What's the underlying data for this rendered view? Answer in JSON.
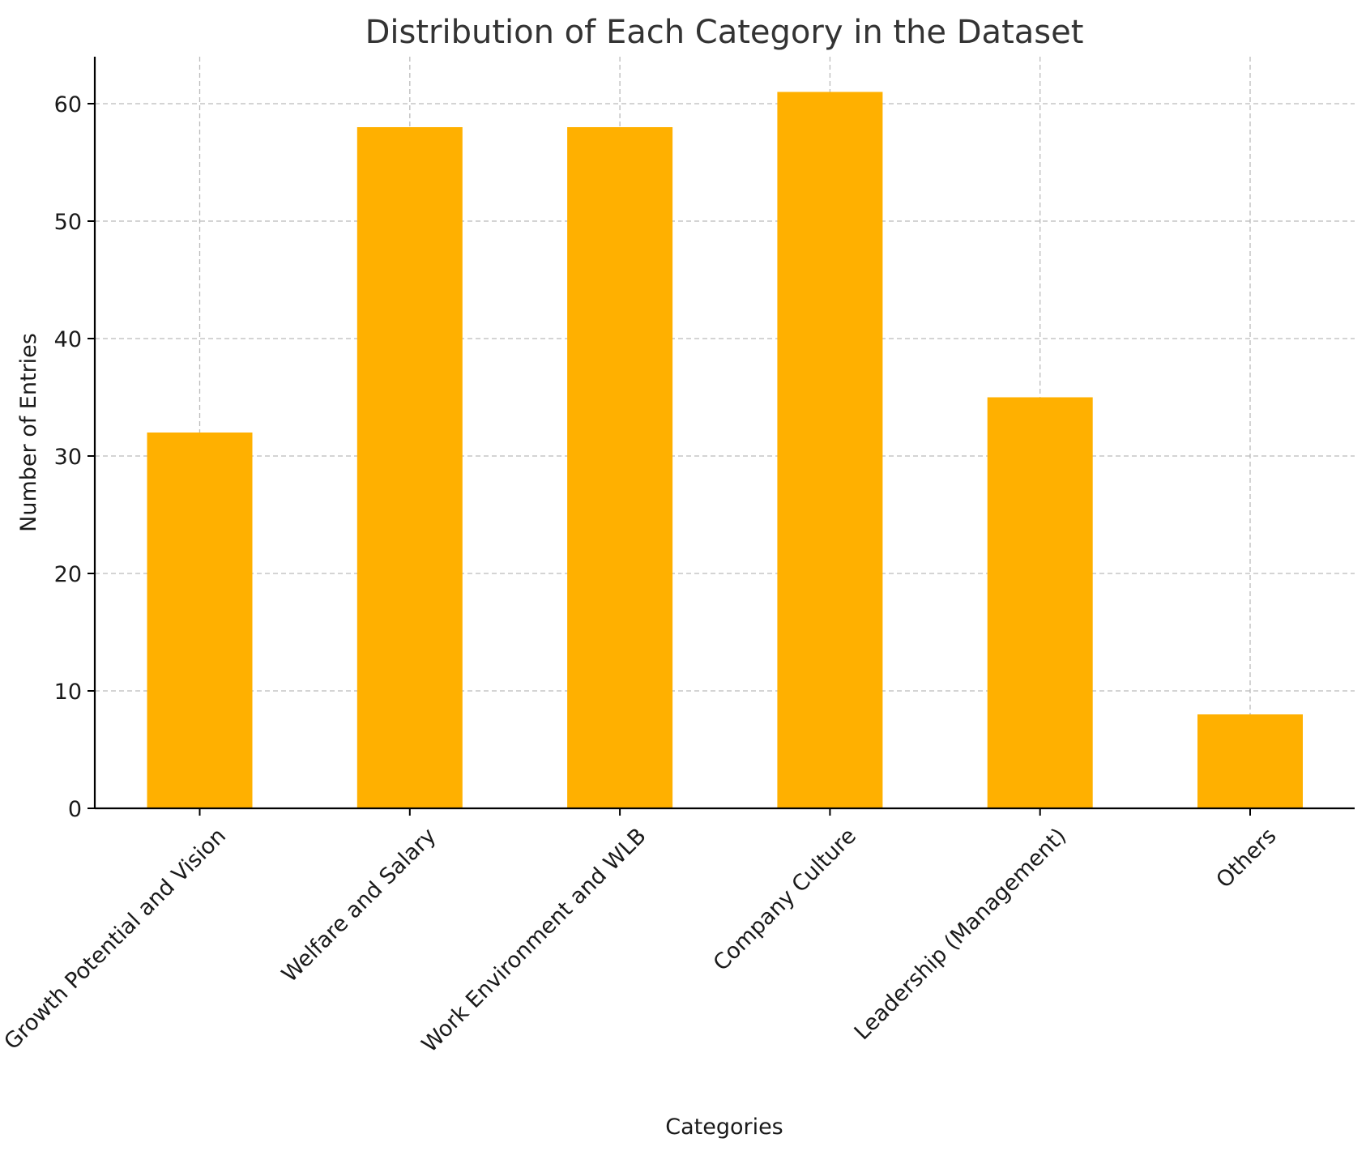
{
  "chart_data": {
    "type": "bar",
    "title": "Distribution of Each Category in the Dataset",
    "xlabel": "Categories",
    "ylabel": "Number of Entries",
    "categories": [
      "Growth Potential and Vision",
      "Welfare and Salary",
      "Work Environment and WLB",
      "Company Culture",
      "Leadership (Management)",
      "Others"
    ],
    "values": [
      32,
      58,
      58,
      61,
      35,
      8
    ],
    "ylim": [
      0,
      64
    ],
    "yticks": [
      0,
      10,
      20,
      30,
      40,
      50,
      60
    ],
    "grid": true,
    "bar_color": "#FFB000"
  }
}
